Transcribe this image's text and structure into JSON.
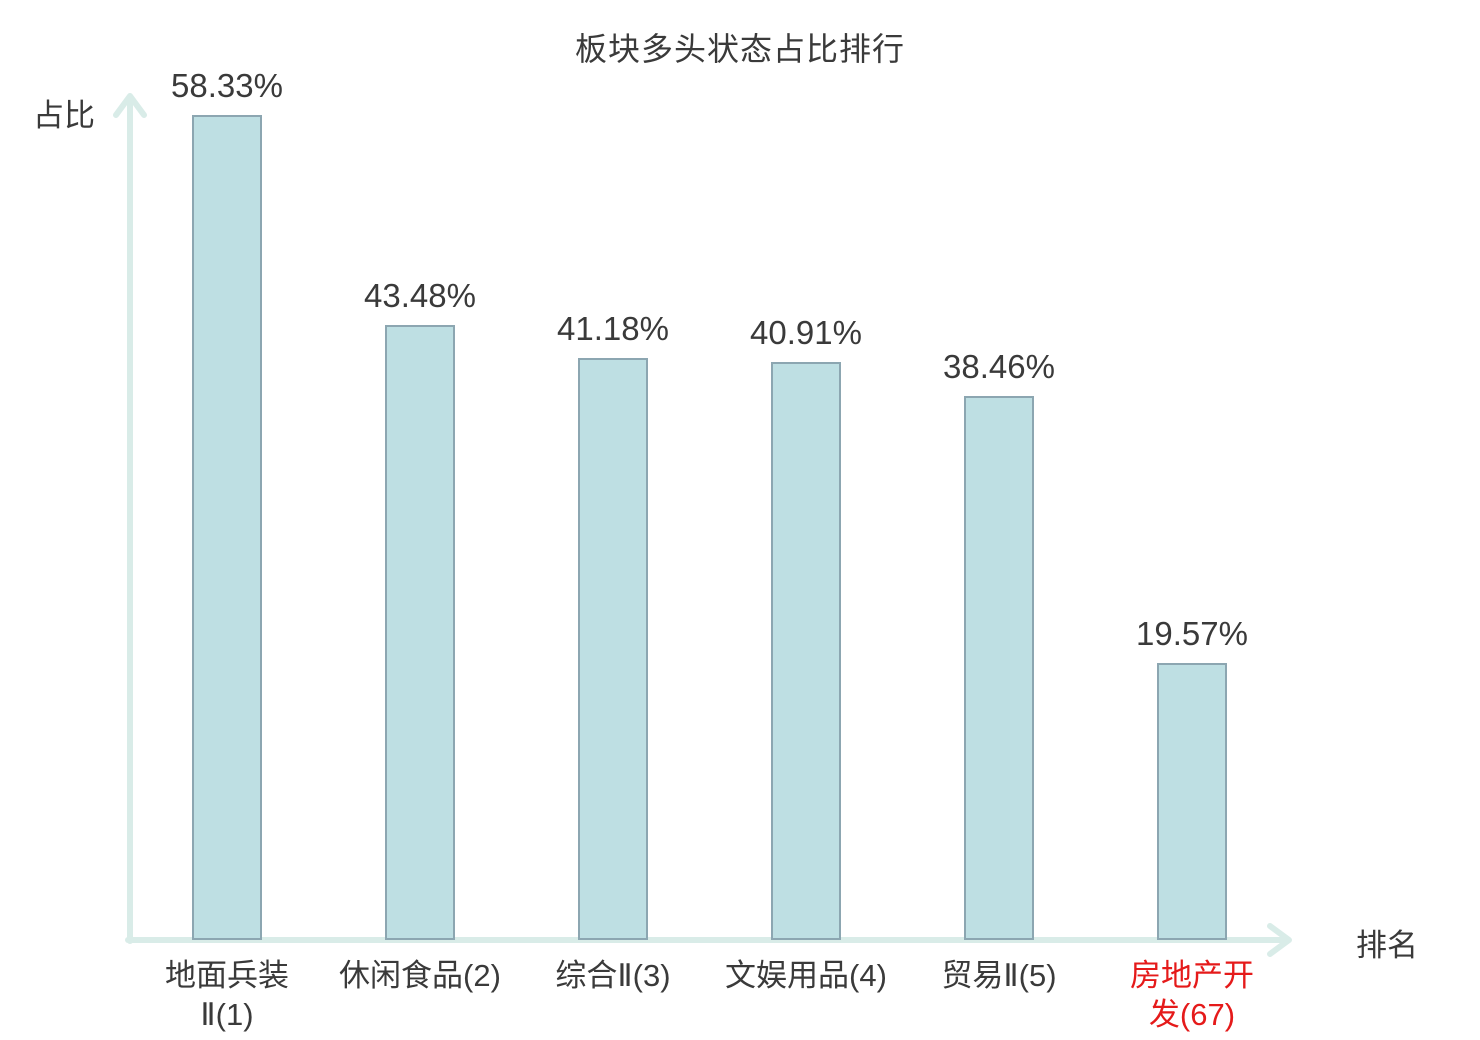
{
  "chart_data": {
    "type": "bar",
    "title": "板块多头状态占比排行",
    "xlabel": "排名",
    "ylabel": "占比",
    "categories": [
      "地面兵装\nⅡ(1)",
      "休闲食品(2)",
      "综合Ⅱ(3)",
      "文娱用品(4)",
      "贸易Ⅱ(5)",
      "房地产开\n发(67)"
    ],
    "values": [
      58.33,
      43.48,
      41.18,
      40.91,
      38.46,
      19.57
    ],
    "value_labels": [
      "58.33%",
      "43.48%",
      "41.18%",
      "40.91%",
      "38.46%",
      "19.57%"
    ],
    "highlight_index": 5,
    "ylim": [
      0,
      60
    ],
    "grid": false,
    "legend": "none",
    "colors": {
      "bar_fill": "#bedfe3",
      "bar_border": "#8ca6b1",
      "axis": "#d9ece8",
      "text": "#3a3a3a",
      "highlight": "#e51a1a"
    }
  }
}
